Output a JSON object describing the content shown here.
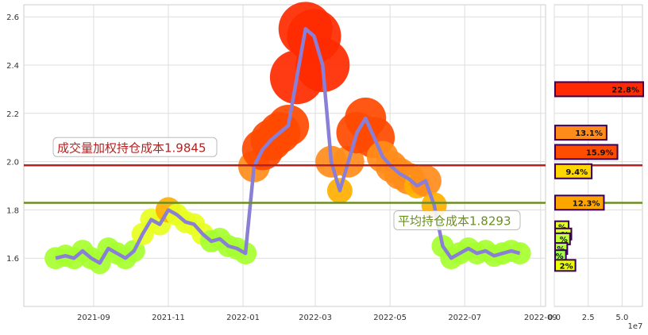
{
  "chart_data": [
    {
      "type": "line",
      "xlim": [
        "2021-07-06",
        "2022-09-05"
      ],
      "ylim": [
        1.4,
        2.65
      ],
      "x_ticks": [
        "2021-09",
        "2021-11",
        "2022-01",
        "2022-03",
        "2022-05",
        "2022-07",
        "2022-09"
      ],
      "y_ticks": [
        "1.6",
        "1.8",
        "2.0",
        "2.2",
        "2.4",
        "2.6"
      ],
      "grid": true,
      "series": [
        {
          "color": "#8a7fd6",
          "points": [
            [
              "2021-08-01",
              1.6
            ],
            [
              "2021-08-09",
              1.61
            ],
            [
              "2021-08-16",
              1.6
            ],
            [
              "2021-08-23",
              1.63
            ],
            [
              "2021-08-30",
              1.6
            ],
            [
              "2021-09-06",
              1.58
            ],
            [
              "2021-09-13",
              1.64
            ],
            [
              "2021-09-20",
              1.62
            ],
            [
              "2021-09-27",
              1.6
            ],
            [
              "2021-10-04",
              1.63
            ],
            [
              "2021-10-11",
              1.7
            ],
            [
              "2021-10-18",
              1.76
            ],
            [
              "2021-10-25",
              1.74
            ],
            [
              "2021-11-01",
              1.8
            ],
            [
              "2021-11-08",
              1.78
            ],
            [
              "2021-11-15",
              1.75
            ],
            [
              "2021-11-22",
              1.74
            ],
            [
              "2021-11-29",
              1.7
            ],
            [
              "2021-12-06",
              1.67
            ],
            [
              "2021-12-13",
              1.68
            ],
            [
              "2021-12-20",
              1.65
            ],
            [
              "2021-12-27",
              1.64
            ],
            [
              "2022-01-03",
              1.62
            ],
            [
              "2022-01-10",
              1.98
            ],
            [
              "2022-01-17",
              2.05
            ],
            [
              "2022-01-24",
              2.09
            ],
            [
              "2022-01-31",
              2.12
            ],
            [
              "2022-02-07",
              2.15
            ],
            [
              "2022-02-14",
              2.35
            ],
            [
              "2022-02-21",
              2.55
            ],
            [
              "2022-02-28",
              2.52
            ],
            [
              "2022-03-07",
              2.4
            ],
            [
              "2022-03-14",
              2.0
            ],
            [
              "2022-03-21",
              1.88
            ],
            [
              "2022-03-28",
              2.0
            ],
            [
              "2022-04-04",
              2.12
            ],
            [
              "2022-04-11",
              2.18
            ],
            [
              "2022-04-18",
              2.1
            ],
            [
              "2022-04-25",
              2.02
            ],
            [
              "2022-05-02",
              1.98
            ],
            [
              "2022-05-09",
              1.95
            ],
            [
              "2022-05-16",
              1.93
            ],
            [
              "2022-05-23",
              1.9
            ],
            [
              "2022-05-30",
              1.92
            ],
            [
              "2022-06-06",
              1.82
            ],
            [
              "2022-06-13",
              1.65
            ],
            [
              "2022-06-20",
              1.6
            ],
            [
              "2022-06-27",
              1.62
            ],
            [
              "2022-07-04",
              1.64
            ],
            [
              "2022-07-11",
              1.62
            ],
            [
              "2022-07-18",
              1.63
            ],
            [
              "2022-07-25",
              1.61
            ],
            [
              "2022-08-01",
              1.62
            ],
            [
              "2022-08-08",
              1.63
            ],
            [
              "2022-08-15",
              1.62
            ]
          ]
        }
      ],
      "reference_lines": [
        {
          "label": "成交量加权持仓成本1.9845",
          "y": 1.9845,
          "color": "#b22222"
        },
        {
          "label": "平均持仓成本1.8293",
          "y": 1.8293,
          "color": "#6b8e23"
        }
      ]
    },
    {
      "type": "bar",
      "orientation": "horizontal",
      "xlim": [
        0,
        65000000.0
      ],
      "ylim": [
        1.4,
        2.65
      ],
      "x_ticks": [
        "0.0",
        "2.5",
        "5.0"
      ],
      "x_scale_label": "1e7",
      "bars": [
        {
          "price": 2.3,
          "value": 65000000.0,
          "label": "22.8%",
          "color": "#ff2a00"
        },
        {
          "price": 2.12,
          "value": 38000000.0,
          "label": "13.1%",
          "color": "#ff8c1a"
        },
        {
          "price": 2.04,
          "value": 46000000.0,
          "label": "15.9%",
          "color": "#ff4d00"
        },
        {
          "price": 1.96,
          "value": 27000000.0,
          "label": "9.4%",
          "color": "#ffd700"
        },
        {
          "price": 1.83,
          "value": 36000000.0,
          "label": "12.3%",
          "color": "#ffa500"
        },
        {
          "price": 1.73,
          "value": 10000000.0,
          "label": "%",
          "color": "#e3ff2a"
        },
        {
          "price": 1.7,
          "value": 12000000.0,
          "label": "%",
          "color": "#d6ff2a"
        },
        {
          "price": 1.68,
          "value": 11000000.0,
          "label": "%",
          "color": "#c0ff3a"
        },
        {
          "price": 1.64,
          "value": 9000000.0,
          "label": "%",
          "color": "#b0ff3a"
        },
        {
          "price": 1.61,
          "value": 8000000.0,
          "label": "%",
          "color": "#a0ff4a"
        },
        {
          "price": 1.57,
          "value": 15000000.0,
          "label": "2%",
          "color": "#e8ff00"
        }
      ]
    }
  ]
}
